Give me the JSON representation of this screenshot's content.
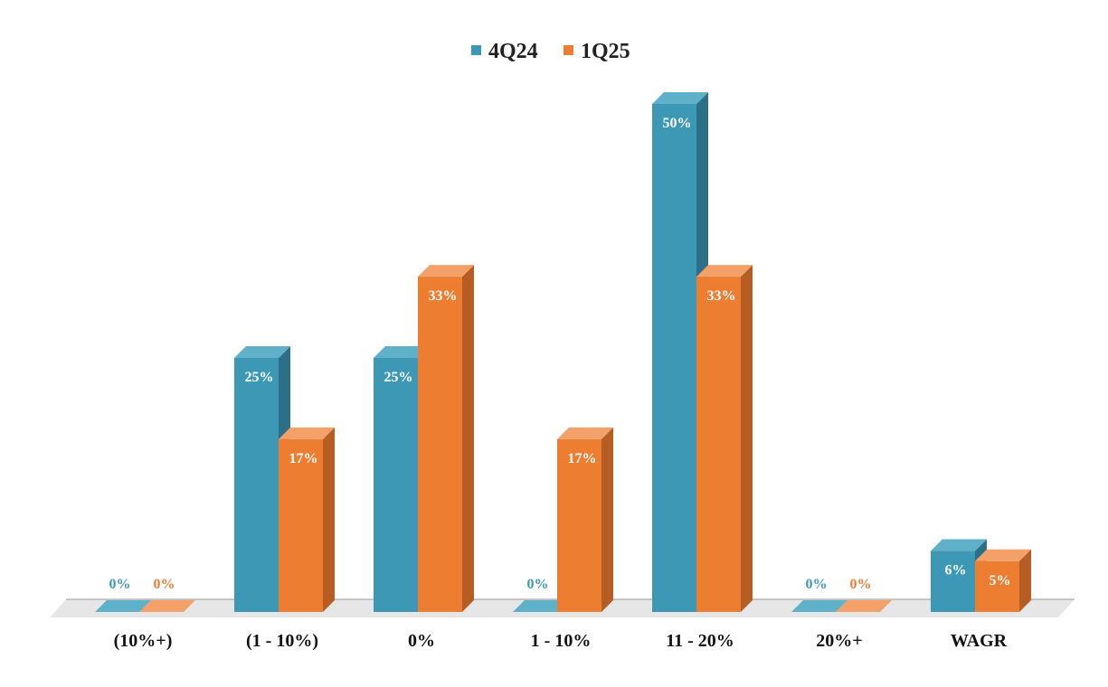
{
  "chart_data": {
    "type": "bar",
    "categories": [
      "(10%+)",
      "(1 - 10%)",
      "0%",
      "1 - 10%",
      "11 - 20%",
      "20%+",
      "WAGR"
    ],
    "series": [
      {
        "name": "4Q24",
        "values": [
          0,
          25,
          25,
          0,
          50,
          0,
          6
        ],
        "labels": [
          "0%",
          "25%",
          "25%",
          "0%",
          "50%",
          "0%",
          "6%"
        ],
        "color": "#3d98b5",
        "top_color": "#5fb0c9",
        "side_color": "#2c6f86"
      },
      {
        "name": "1Q25",
        "values": [
          0,
          17,
          33,
          17,
          33,
          0,
          5
        ],
        "labels": [
          "0%",
          "17%",
          "33%",
          "17%",
          "33%",
          "0%",
          "5%"
        ],
        "color": "#ed7d31",
        "top_color": "#f3a069",
        "side_color": "#b55d22"
      }
    ],
    "ylim": [
      0,
      50
    ],
    "grid": false,
    "legend": "top-center"
  }
}
